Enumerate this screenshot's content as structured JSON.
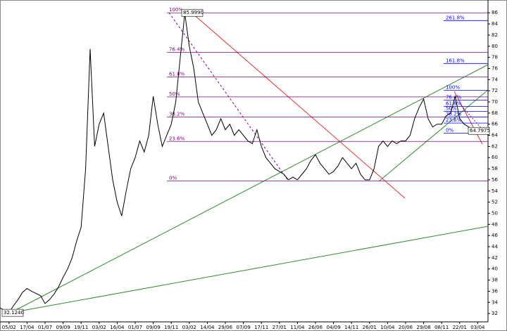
{
  "chart_data": {
    "type": "line",
    "categories": [
      null,
      null,
      "05/02",
      null,
      null,
      null,
      "17/04",
      null,
      null,
      null,
      "01/07",
      null,
      null,
      null,
      "09/09",
      null,
      null,
      null,
      "19/11",
      null,
      null,
      null,
      "03/02",
      null,
      null,
      null,
      "16/04",
      null,
      null,
      null,
      "01/07",
      null,
      null,
      null,
      "09/09",
      null,
      null,
      null,
      "19/11",
      null,
      null,
      null,
      "03/02",
      null,
      null,
      null,
      "14/04",
      null,
      null,
      null,
      "29/06",
      null,
      null,
      null,
      "07/09",
      null,
      null,
      null,
      "17/11",
      null,
      null,
      null,
      "27/01",
      null,
      null,
      null,
      "11/04",
      null,
      null,
      null,
      "26/06",
      null,
      null,
      null,
      "04/09",
      null,
      null,
      null,
      "14/11",
      null,
      null,
      null,
      "26/01",
      null,
      null,
      null,
      "10/04",
      null,
      null,
      null,
      "20/06",
      null,
      null,
      null,
      "29/08",
      null,
      null,
      null,
      "08/11",
      null,
      null,
      null,
      "22/01",
      null,
      null,
      null,
      "03/04",
      null
    ],
    "series": [
      {
        "color": "#000000",
        "values": [
          33,
          32.6,
          32.2,
          33.4,
          34.5,
          35.8,
          36.5,
          36,
          35.6,
          35.2,
          33.8,
          34.5,
          35.5,
          36.8,
          38.5,
          40,
          42,
          45,
          47.5,
          58,
          79.5,
          62,
          66,
          68,
          62,
          56,
          52,
          49.5,
          54,
          58,
          60,
          63,
          61,
          64,
          71,
          66,
          62,
          64,
          66,
          70,
          78,
          85.9,
          80,
          76,
          70,
          68,
          66,
          64,
          65,
          67,
          65,
          66,
          64,
          65,
          64,
          63,
          62.5,
          65,
          62,
          60,
          59,
          58,
          57.5,
          57,
          56,
          56.5,
          56,
          57,
          58,
          59.5,
          60.5,
          59,
          58,
          57,
          57.5,
          58.5,
          60,
          59,
          58,
          59,
          57,
          56,
          56,
          58,
          62,
          63,
          62,
          63,
          62.5,
          63,
          63,
          64,
          67,
          69,
          70.5,
          67,
          65.5,
          66,
          66,
          67.5,
          68,
          71,
          67,
          66,
          65.5,
          65,
          64.5,
          64.8
        ]
      }
    ],
    "ylim": [
      30.5,
      88.3
    ],
    "yticks": [
      32,
      34,
      36,
      38,
      40,
      42,
      44,
      46,
      48,
      50,
      52,
      54,
      56,
      58,
      60,
      62,
      64,
      66,
      68,
      70,
      72,
      74,
      76,
      78,
      80,
      82,
      84,
      86
    ],
    "fib_levels": [
      {
        "label": "100%",
        "value": 85.999
      },
      {
        "label": "76.4%",
        "value": 78.9
      },
      {
        "label": "61.8%",
        "value": 74.5
      },
      {
        "label": "50%",
        "value": 70.9
      },
      {
        "label": "38.2%",
        "value": 67.3
      },
      {
        "label": "23.6%",
        "value": 62.9
      },
      {
        "label": "0%",
        "value": 55.8
      }
    ],
    "fib_levels_color": "#800080",
    "fib_extensions": [
      {
        "label": "261.8%",
        "value": 84.6
      },
      {
        "label": "161.8%",
        "value": 76.9
      }
    ],
    "fib_extensions_color": "#0000ff",
    "fib_small": [
      {
        "label": "100%",
        "value": 72.1
      },
      {
        "label": "76.4%",
        "value": 70.3
      },
      {
        "label": "61.8%",
        "value": 69.2
      },
      {
        "label": "50%",
        "value": 68.3
      },
      {
        "label": "38.2%",
        "value": 67.3
      },
      {
        "label": "23.6%",
        "value": 66.2
      },
      {
        "label": "0%",
        "value": 64.4
      }
    ],
    "price_labels": [
      {
        "label": "85.9990",
        "value": 85.999
      },
      {
        "label": "32.1240",
        "value": 32.124
      },
      {
        "label": "64.7975",
        "value": 64.7975
      }
    ]
  }
}
